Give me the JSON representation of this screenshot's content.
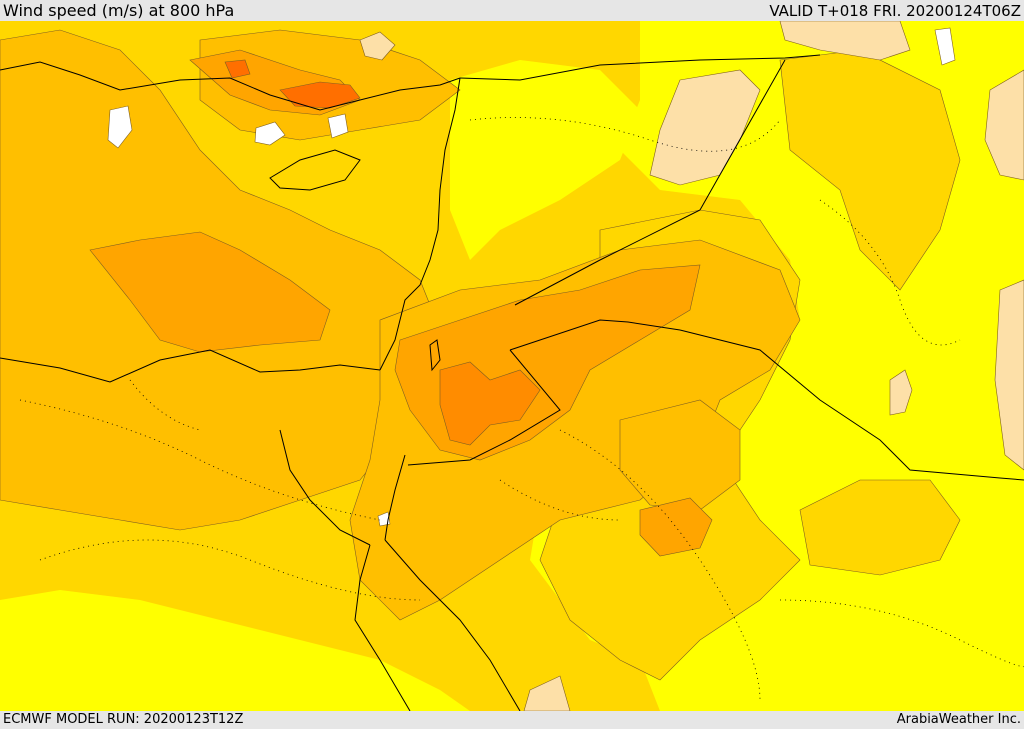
{
  "header": {
    "title": "Wind speed (m/s) at 800 hPa",
    "valid": "VALID T+018 FRI. 20200124T06Z"
  },
  "footer": {
    "model_run": "ECMWF MODEL RUN: 20200123T12Z",
    "credit": "ArabiaWeather Inc."
  },
  "colors": {
    "level_pale": "#fde0a8",
    "level_yellow": "#ffff00",
    "level_gold": "#ffd700",
    "level_amber": "#ffbf00",
    "level_orange": "#ffa500",
    "level_dark_orange": "#ff8c00",
    "level_red_orange": "#ff6f00",
    "level_white": "#ffffff",
    "border_line": "#000000",
    "contour_line": "#806020"
  }
}
